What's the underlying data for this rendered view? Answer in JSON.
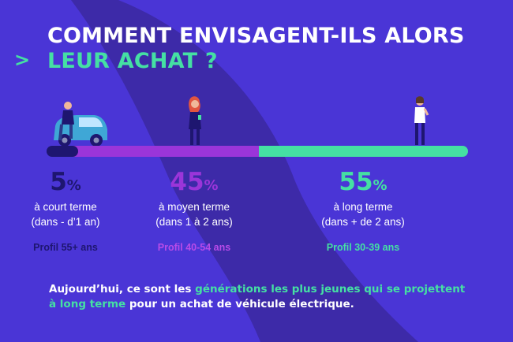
{
  "title": {
    "line1": "COMMENT ENVISAGENT-ILS ALORS",
    "line2": "LEUR ACHAT ?",
    "arrow": ">"
  },
  "timeline": {
    "segments": [
      {
        "id": "court",
        "color": "#1e1670",
        "share_pct": 5
      },
      {
        "id": "moyen",
        "color": "#9b35d9",
        "share_pct": 45
      },
      {
        "id": "long",
        "color": "#45e0a3",
        "share_pct": 55
      }
    ]
  },
  "columns": [
    {
      "value": "5",
      "unit": "%",
      "line1": "à court terme",
      "line2": "(dans - d’1 an)",
      "profile": "Profil 55+ ans",
      "color": "#1e1670"
    },
    {
      "value": "45",
      "unit": "%",
      "line1": "à moyen terme",
      "line2": "(dans 1 à 2 ans)",
      "profile": "Profil 40-54 ans",
      "color": "#9b35d9"
    },
    {
      "value": "55",
      "unit": "%",
      "line1": "à long terme",
      "line2": "(dans + de 2 ans)",
      "profile": "Profil 30-39 ans",
      "color": "#45e0a3"
    }
  ],
  "bottom": {
    "part1": "Aujourd’hui, ce sont les ",
    "highlight1": "générations les plus jeunes qui se projettent à long terme",
    "part2": " pour un achat de véhicule électrique."
  },
  "illustrations": [
    "person-with-car-icon",
    "woman-phone-icon",
    "woman-standing-icon"
  ],
  "colors": {
    "background": "#4a35d6",
    "swoosh": "#3d2aa8",
    "accent_green": "#45e0a3",
    "accent_purple": "#9b35d9",
    "dark_navy": "#1e1670"
  }
}
